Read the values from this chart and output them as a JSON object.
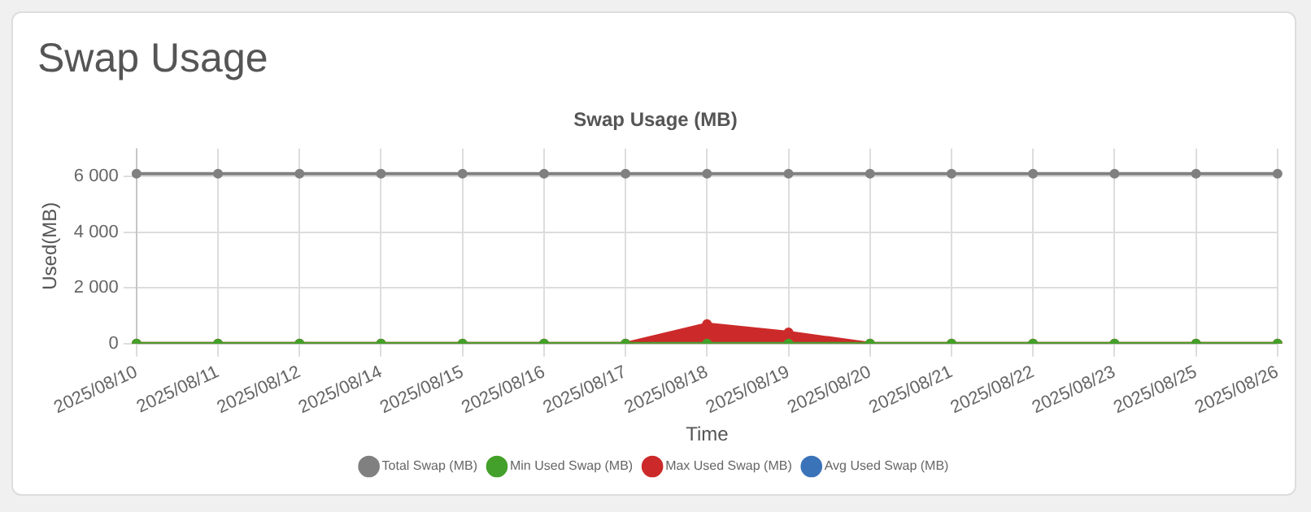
{
  "chart_data": {
    "type": "line",
    "title": "Swap Usage",
    "subtitle": "Swap Usage (MB)",
    "xlabel": "Time",
    "ylabel": "Used(MB)",
    "categories": [
      "2025/08/10",
      "2025/08/11",
      "2025/08/12",
      "2025/08/14",
      "2025/08/15",
      "2025/08/16",
      "2025/08/17",
      "2025/08/18",
      "2025/08/19",
      "2025/08/20",
      "2025/08/21",
      "2025/08/22",
      "2025/08/23",
      "2025/08/25",
      "2025/08/26"
    ],
    "series": [
      {
        "name": "Total Swap (MB)",
        "color": "#808080",
        "values": [
          6100,
          6100,
          6100,
          6100,
          6100,
          6100,
          6100,
          6100,
          6100,
          6100,
          6100,
          6100,
          6100,
          6100,
          6100
        ]
      },
      {
        "name": "Min Used Swap (MB)",
        "color": "#43a02a",
        "values": [
          0,
          0,
          0,
          0,
          0,
          0,
          0,
          0,
          0,
          0,
          0,
          0,
          0,
          0,
          0
        ]
      },
      {
        "name": "Max Used Swap (MB)",
        "type": "area",
        "color": "#cc2a2a",
        "values": [
          0,
          0,
          0,
          0,
          0,
          0,
          0,
          700,
          400,
          0,
          0,
          0,
          0,
          0,
          0
        ]
      },
      {
        "name": "Avg Used Swap (MB)",
        "color": "#3b73b9",
        "values": [
          null,
          null,
          null,
          null,
          null,
          null,
          null,
          null,
          null,
          null,
          null,
          null,
          null,
          null,
          null
        ]
      }
    ],
    "ylim": [
      0,
      7000
    ],
    "yticks": [
      {
        "value": 0,
        "label": "0"
      },
      {
        "value": 2000,
        "label": "2 000"
      },
      {
        "value": 4000,
        "label": "4 000"
      },
      {
        "value": 6000,
        "label": "6 000"
      }
    ],
    "grid": true,
    "legend": "bottom",
    "marker": "circle",
    "line_style": "solid"
  }
}
